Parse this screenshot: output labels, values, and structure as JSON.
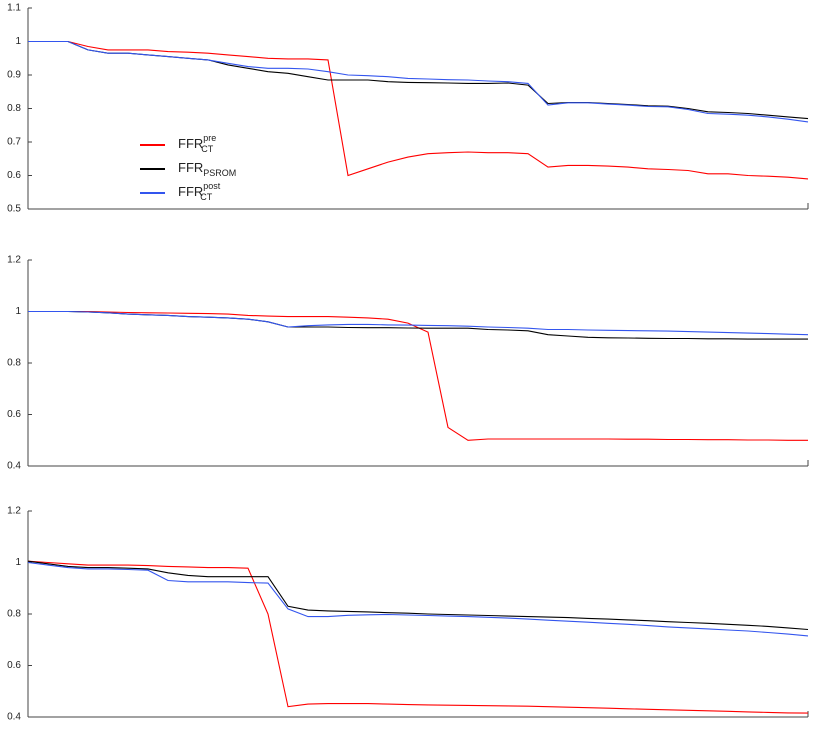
{
  "chart_data": [
    {
      "type": "line",
      "ylim": [
        0.5,
        1.1
      ],
      "yticks": [
        0.5,
        0.6,
        0.7,
        0.8,
        0.9,
        1,
        1.1
      ],
      "legend": "upper left",
      "series": [
        {
          "name": "FFR",
          "name_superscript": "pre",
          "name_subscript": "CT",
          "color": "#ff0000",
          "values": [
            1.0,
            1.0,
            1.0,
            0.985,
            0.975,
            0.975,
            0.975,
            0.97,
            0.968,
            0.965,
            0.96,
            0.955,
            0.95,
            0.948,
            0.948,
            0.945,
            0.6,
            0.62,
            0.64,
            0.655,
            0.665,
            0.668,
            0.67,
            0.668,
            0.668,
            0.665,
            0.625,
            0.63,
            0.63,
            0.628,
            0.625,
            0.62,
            0.618,
            0.615,
            0.605,
            0.605,
            0.6,
            0.598,
            0.595,
            0.59
          ]
        },
        {
          "name": "FFR",
          "name_subscript": "PSROM",
          "color": "#000000",
          "values": [
            1.0,
            1.0,
            1.0,
            0.975,
            0.965,
            0.965,
            0.96,
            0.955,
            0.95,
            0.945,
            0.93,
            0.92,
            0.91,
            0.905,
            0.895,
            0.885,
            0.885,
            0.885,
            0.88,
            0.878,
            0.877,
            0.876,
            0.875,
            0.875,
            0.876,
            0.87,
            0.815,
            0.818,
            0.818,
            0.815,
            0.812,
            0.808,
            0.807,
            0.8,
            0.79,
            0.788,
            0.785,
            0.78,
            0.775,
            0.77
          ]
        },
        {
          "name": "FFR",
          "name_superscript": "post",
          "name_subscript": "CT",
          "color": "#3355ee",
          "values": [
            1.0,
            1.0,
            1.0,
            0.975,
            0.965,
            0.965,
            0.96,
            0.955,
            0.95,
            0.945,
            0.935,
            0.925,
            0.92,
            0.92,
            0.918,
            0.91,
            0.9,
            0.898,
            0.895,
            0.89,
            0.888,
            0.886,
            0.885,
            0.882,
            0.88,
            0.875,
            0.81,
            0.817,
            0.817,
            0.813,
            0.81,
            0.806,
            0.805,
            0.797,
            0.785,
            0.783,
            0.78,
            0.775,
            0.768,
            0.76
          ]
        }
      ]
    },
    {
      "type": "line",
      "ylim": [
        0.4,
        1.2
      ],
      "yticks": [
        0.4,
        0.6,
        0.8,
        1,
        1.2
      ],
      "series": [
        {
          "color": "#ff0000",
          "values": [
            1.0,
            1.0,
            1.0,
            1.0,
            0.998,
            0.996,
            0.995,
            0.994,
            0.993,
            0.992,
            0.99,
            0.985,
            0.982,
            0.98,
            0.98,
            0.98,
            0.978,
            0.975,
            0.97,
            0.955,
            0.92,
            0.55,
            0.5,
            0.505,
            0.505,
            0.505,
            0.505,
            0.505,
            0.505,
            0.505,
            0.504,
            0.504,
            0.503,
            0.503,
            0.502,
            0.502,
            0.501,
            0.501,
            0.5,
            0.5
          ]
        },
        {
          "color": "#000000",
          "values": [
            1.0,
            1.0,
            1.0,
            0.998,
            0.995,
            0.99,
            0.987,
            0.985,
            0.98,
            0.978,
            0.975,
            0.97,
            0.96,
            0.94,
            0.94,
            0.94,
            0.938,
            0.937,
            0.937,
            0.936,
            0.935,
            0.935,
            0.935,
            0.93,
            0.928,
            0.925,
            0.91,
            0.905,
            0.9,
            0.898,
            0.897,
            0.896,
            0.895,
            0.895,
            0.894,
            0.894,
            0.893,
            0.893,
            0.893,
            0.893
          ]
        },
        {
          "color": "#3355ee",
          "values": [
            1.0,
            1.0,
            1.0,
            0.998,
            0.995,
            0.99,
            0.987,
            0.985,
            0.98,
            0.978,
            0.975,
            0.97,
            0.96,
            0.94,
            0.945,
            0.948,
            0.95,
            0.95,
            0.948,
            0.947,
            0.946,
            0.945,
            0.943,
            0.94,
            0.938,
            0.935,
            0.93,
            0.93,
            0.928,
            0.927,
            0.926,
            0.925,
            0.924,
            0.922,
            0.92,
            0.918,
            0.916,
            0.914,
            0.912,
            0.91
          ]
        }
      ]
    },
    {
      "type": "line",
      "ylim": [
        0.4,
        1.2
      ],
      "yticks": [
        0.4,
        0.6,
        0.8,
        1,
        1.2
      ],
      "series": [
        {
          "color": "#ff0000",
          "values": [
            1.005,
            1.0,
            0.995,
            0.99,
            0.99,
            0.99,
            0.988,
            0.985,
            0.983,
            0.98,
            0.98,
            0.978,
            0.8,
            0.44,
            0.45,
            0.452,
            0.452,
            0.452,
            0.45,
            0.448,
            0.447,
            0.446,
            0.445,
            0.444,
            0.443,
            0.442,
            0.44,
            0.438,
            0.436,
            0.434,
            0.432,
            0.43,
            0.428,
            0.426,
            0.424,
            0.422,
            0.42,
            0.418,
            0.416,
            0.415
          ]
        },
        {
          "color": "#000000",
          "values": [
            1.005,
            0.995,
            0.985,
            0.98,
            0.98,
            0.978,
            0.975,
            0.96,
            0.95,
            0.945,
            0.945,
            0.945,
            0.945,
            0.83,
            0.815,
            0.812,
            0.81,
            0.808,
            0.805,
            0.803,
            0.8,
            0.798,
            0.796,
            0.794,
            0.792,
            0.79,
            0.788,
            0.786,
            0.783,
            0.78,
            0.777,
            0.774,
            0.77,
            0.767,
            0.764,
            0.76,
            0.756,
            0.752,
            0.746,
            0.74
          ]
        },
        {
          "color": "#3355ee",
          "values": [
            1.0,
            0.99,
            0.98,
            0.975,
            0.975,
            0.973,
            0.97,
            0.93,
            0.925,
            0.925,
            0.925,
            0.922,
            0.92,
            0.82,
            0.79,
            0.79,
            0.795,
            0.797,
            0.798,
            0.796,
            0.794,
            0.792,
            0.79,
            0.787,
            0.784,
            0.78,
            0.776,
            0.772,
            0.768,
            0.764,
            0.76,
            0.755,
            0.75,
            0.746,
            0.742,
            0.738,
            0.734,
            0.728,
            0.722,
            0.715
          ]
        }
      ]
    }
  ]
}
